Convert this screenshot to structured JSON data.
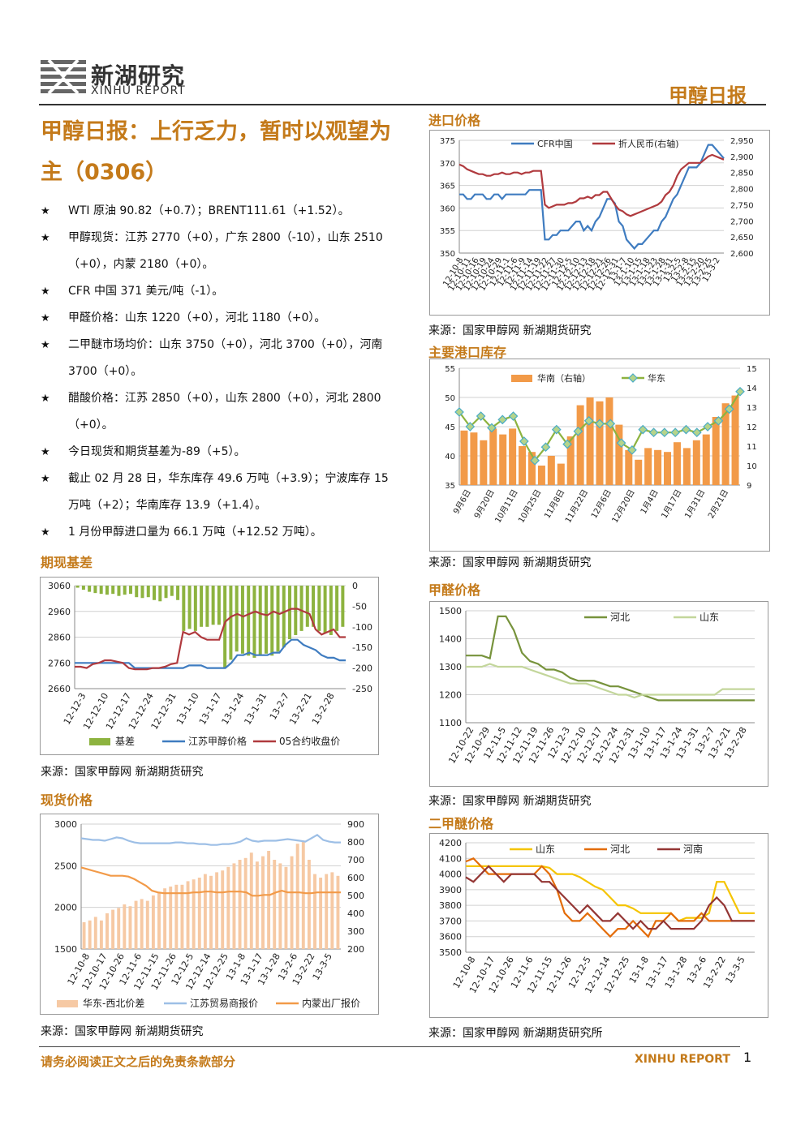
{
  "header": {
    "logo_cn": "新湖研究",
    "logo_en": "XINHU REPORT",
    "report_title": "甲醇日报"
  },
  "main_title": "甲醇日报：上行乏力，暂时以观望为主（0306）",
  "bullets": [
    "WTI 原油 90.82（+0.7）；BRENT111.61（+1.52）。",
    "甲醇现货：江苏 2770（+0），广东 2800（-10），山东 2510（+0），内蒙 2180（+0）。",
    "CFR 中国 371 美元/吨（-1）。",
    "甲醛价格：山东 1220（+0），河北 1180（+0）。",
    "二甲醚市场均价：山东 3750（+0），河北 3700（+0），河南 3700（+0）。",
    "醋酸价格：江苏 2850（+0），山东 2800（+0），河北 2800（+0）。",
    "今日现货和期货基差为-89（+5）。",
    "截止 02 月 28 日，华东库存 49.6 万吨（+3.9）；宁波库存 15 万吨（+2）；华南库存 13.9（+1.4）。",
    "1 月份甲醇进口量为 66.1 万吨（+12.52 万吨）。"
  ],
  "sections": {
    "basis": "期现基差",
    "spot": "现货价格",
    "import": "进口价格",
    "inventory": "主要港口库存",
    "formaldehyde": "甲醛价格",
    "dme": "二甲醚价格"
  },
  "sources": {
    "basis": "来源：国家甲醇网 新湖期货研究",
    "spot": "来源：国家甲醇网 新湖期货研究",
    "import": "来源：国家甲醇网 新湖期货研究",
    "inventory": "来源：国家甲醇网 新湖期货研究",
    "formaldehyde": "来源：国家甲醇网 新湖期货研究",
    "dme": "来源：国家甲醇网 新湖期货研究所"
  },
  "footer": {
    "disclaimer": "请务必阅读正文之后的免责条款部分",
    "brand": "XINHU REPORT",
    "page": "1"
  },
  "colors": {
    "accent": "#c47a1a",
    "green": "#8db33f",
    "blue": "#3f7cc0",
    "red": "#b03a3e",
    "orange": "#f29a48",
    "peach": "#f6c9a4",
    "lightblue": "#9dbfe6",
    "olive": "#77933c",
    "lightolive": "#c3d69b",
    "yellow": "#f5c400",
    "darkred": "#943634"
  },
  "chart_data": [
    {
      "id": "basis",
      "type": "line",
      "x_ticks": [
        "12-12-3",
        "12-12-10",
        "12-12-17",
        "12-12-24",
        "12-12-31",
        "13-1-10",
        "13-1-17",
        "13-1-24",
        "13-1-31",
        "13-2-7",
        "13-2-21",
        "13-2-28"
      ],
      "ylim_left": [
        2660,
        3060
      ],
      "yticks_left": [
        2660,
        2760,
        2860,
        2960,
        3060
      ],
      "ylim_right": [
        -250,
        0
      ],
      "yticks_right": [
        -250,
        -200,
        -150,
        -100,
        -50,
        0
      ],
      "series": [
        {
          "name": "基差",
          "axis": "right",
          "kind": "bar",
          "color": "#8db33f",
          "values": [
            -5,
            -10,
            -15,
            -18,
            -20,
            -22,
            -20,
            -25,
            -22,
            -20,
            -28,
            -30,
            -28,
            -35,
            -38,
            -30,
            -25,
            -35,
            -110,
            -105,
            -110,
            -100,
            -100,
            -95,
            -95,
            -200,
            -180,
            -160,
            -165,
            -170,
            -175,
            -170,
            -165,
            -170,
            -160,
            -150,
            -130,
            -120,
            -110,
            -100,
            -100,
            -110,
            -115,
            -120,
            -110,
            -100
          ]
        },
        {
          "name": "江苏甲醇价格",
          "axis": "left",
          "kind": "line",
          "color": "#3f7cc0",
          "values": [
            2760,
            2760,
            2760,
            2760,
            2760,
            2760,
            2760,
            2760,
            2760,
            2760,
            2740,
            2740,
            2740,
            2740,
            2740,
            2740,
            2740,
            2740,
            2740,
            2750,
            2750,
            2750,
            2740,
            2740,
            2740,
            2740,
            2760,
            2790,
            2790,
            2800,
            2790,
            2790,
            2790,
            2800,
            2800,
            2830,
            2850,
            2850,
            2830,
            2820,
            2810,
            2790,
            2780,
            2780,
            2770,
            2770
          ]
        },
        {
          "name": "05合约收盘价",
          "axis": "left",
          "kind": "line",
          "color": "#b03a3e",
          "values": [
            2745,
            2745,
            2740,
            2755,
            2760,
            2770,
            2770,
            2765,
            2760,
            2740,
            2735,
            2735,
            2735,
            2740,
            2740,
            2745,
            2755,
            2760,
            2880,
            2870,
            2880,
            2860,
            2850,
            2850,
            2850,
            2920,
            2940,
            2950,
            2940,
            2950,
            2960,
            2950,
            2945,
            2960,
            2950,
            2960,
            2970,
            2970,
            2960,
            2950,
            2890,
            2870,
            2880,
            2890,
            2860,
            2860
          ]
        }
      ]
    },
    {
      "id": "spot",
      "type": "line",
      "x_ticks": [
        "12-10-8",
        "12-10-17",
        "12-10-26",
        "12-11-6",
        "12-11-15",
        "12-11-26",
        "12-12-5",
        "12-12-14",
        "12-12-25",
        "13-1-8",
        "13-1-17",
        "13-1-28",
        "13-2-6",
        "13-2-22",
        "13-3-5"
      ],
      "ylim_left": [
        1500,
        3000
      ],
      "yticks_left": [
        1500,
        2000,
        2500,
        3000
      ],
      "ylim_right": [
        200,
        900
      ],
      "yticks_right": [
        200,
        300,
        400,
        500,
        600,
        700,
        800,
        900
      ],
      "series": [
        {
          "name": "华东-西北价差",
          "axis": "right",
          "kind": "bar",
          "color": "#f6c9a4",
          "values": [
            350,
            360,
            380,
            360,
            400,
            420,
            430,
            450,
            440,
            470,
            480,
            470,
            500,
            520,
            540,
            550,
            560,
            560,
            580,
            590,
            600,
            620,
            610,
            630,
            640,
            660,
            680,
            700,
            710,
            740,
            690,
            720,
            750,
            700,
            680,
            660,
            720,
            790,
            800,
            700,
            620,
            600,
            620,
            630,
            610
          ]
        },
        {
          "name": "江苏贸易商报价",
          "axis": "left",
          "kind": "line",
          "color": "#9dbfe6",
          "values": [
            2830,
            2820,
            2810,
            2810,
            2800,
            2820,
            2840,
            2830,
            2800,
            2780,
            2770,
            2770,
            2770,
            2770,
            2770,
            2770,
            2780,
            2780,
            2770,
            2770,
            2760,
            2760,
            2750,
            2750,
            2760,
            2760,
            2770,
            2790,
            2830,
            2800,
            2790,
            2800,
            2800,
            2800,
            2810,
            2820,
            2810,
            2800,
            2790,
            2830,
            2870,
            2810,
            2790,
            2780,
            2780
          ]
        },
        {
          "name": "内蒙出厂报价",
          "axis": "left",
          "kind": "line",
          "color": "#f29a48",
          "values": [
            2480,
            2460,
            2440,
            2420,
            2400,
            2380,
            2380,
            2380,
            2370,
            2340,
            2300,
            2260,
            2200,
            2180,
            2170,
            2170,
            2170,
            2170,
            2170,
            2180,
            2180,
            2190,
            2190,
            2180,
            2180,
            2190,
            2190,
            2190,
            2180,
            2140,
            2140,
            2150,
            2150,
            2180,
            2200,
            2180,
            2180,
            2180,
            2170,
            2170,
            2180,
            2180,
            2180,
            2180,
            2180
          ]
        }
      ]
    },
    {
      "id": "import",
      "type": "line",
      "x_ticks": [
        "12-10-8",
        "12-10-11",
        "12-10-16",
        "12-10-19",
        "12-10-24",
        "12-10-29",
        "12-11-1",
        "12-11-6",
        "12-11-9",
        "12-11-14",
        "12-11-19",
        "12-11-22",
        "12-11-27",
        "12-11-30",
        "12-12-5",
        "12-12-10",
        "12-12-13",
        "12-12-18",
        "12-12-21",
        "12-12-26",
        "12-12-31",
        "13-1-7",
        "13-1-10",
        "13-1-15",
        "13-1-18",
        "13-1-23",
        "13-1-28",
        "13-1-31",
        "13-2-5",
        "13-2-8",
        "13-2-15",
        "13-2-20",
        "13-2-25",
        "13-3-2"
      ],
      "ylim_left": [
        350,
        375
      ],
      "yticks_left": [
        350,
        355,
        360,
        365,
        370,
        375
      ],
      "ylim_right": [
        2600,
        2950
      ],
      "yticks_right": [
        2600,
        2650,
        2700,
        2750,
        2800,
        2850,
        2900,
        2950
      ],
      "series": [
        {
          "name": "CFR中国",
          "axis": "left",
          "kind": "line",
          "color": "#3f7cc0",
          "values": [
            363,
            363,
            362,
            362,
            363,
            363,
            363,
            362,
            362,
            363,
            363,
            362,
            363,
            363,
            363,
            363,
            363,
            363,
            364,
            364,
            364,
            364,
            353,
            353,
            354,
            354,
            355,
            355,
            355,
            356,
            357,
            357,
            355,
            356,
            355,
            357,
            358,
            360,
            362,
            362,
            361,
            357,
            356,
            353,
            352,
            351,
            352,
            352,
            353,
            354,
            355,
            355,
            357,
            358,
            360,
            362,
            363,
            365,
            367,
            369,
            369,
            369,
            370,
            372,
            374,
            374,
            373,
            372,
            371
          ]
        },
        {
          "name": "折人民币(右轴)",
          "axis": "right",
          "kind": "line",
          "color": "#b03a3e",
          "values": [
            2875,
            2870,
            2860,
            2855,
            2850,
            2845,
            2845,
            2840,
            2840,
            2845,
            2845,
            2850,
            2845,
            2845,
            2850,
            2850,
            2845,
            2850,
            2850,
            2855,
            2855,
            2855,
            2750,
            2740,
            2745,
            2750,
            2750,
            2750,
            2755,
            2755,
            2760,
            2770,
            2770,
            2775,
            2770,
            2780,
            2780,
            2790,
            2790,
            2770,
            2750,
            2735,
            2730,
            2720,
            2715,
            2720,
            2725,
            2730,
            2735,
            2740,
            2745,
            2750,
            2760,
            2780,
            2790,
            2810,
            2840,
            2860,
            2870,
            2880,
            2880,
            2880,
            2880,
            2890,
            2900,
            2905,
            2900,
            2895,
            2890
          ]
        }
      ]
    },
    {
      "id": "inventory",
      "type": "line",
      "x_ticks": [
        "9月6日",
        "9月20日",
        "10月11日",
        "10月25日",
        "11月8日",
        "11月22日",
        "12月6日",
        "12月20日",
        "1月4日",
        "1月17日",
        "1月31日",
        "2月21日"
      ],
      "ylim_left": [
        35,
        55
      ],
      "yticks_left": [
        35,
        40,
        45,
        50,
        55
      ],
      "ylim_right": [
        9,
        15
      ],
      "yticks_right": [
        9,
        10,
        11,
        12,
        13,
        14,
        15
      ],
      "series": [
        {
          "name": "华南（右轴）",
          "axis": "right",
          "kind": "bar",
          "color": "#f29a48",
          "values": [
            11.8,
            11.7,
            11.3,
            11.9,
            11.6,
            11.9,
            11.0,
            10.7,
            10.0,
            10.5,
            10.1,
            11.5,
            13.1,
            13.5,
            13.3,
            13.5,
            12.1,
            10.8,
            10.3,
            10.9,
            10.8,
            10.7,
            11.2,
            10.9,
            11.3,
            11.6,
            12.5,
            13.2,
            13.6
          ]
        },
        {
          "name": "华东",
          "axis": "left",
          "kind": "line",
          "color": "#8db33f",
          "marker_color": "#4bacc6",
          "values": [
            47.5,
            45,
            46.8,
            44.8,
            46.2,
            46.8,
            42.5,
            39.2,
            41.5,
            44.5,
            42,
            44.2,
            46,
            45.5,
            45.5,
            42.2,
            41,
            44.5,
            44,
            44,
            44,
            44.5,
            44,
            45,
            46,
            48,
            51
          ]
        }
      ]
    },
    {
      "id": "formaldehyde",
      "type": "line",
      "x_ticks": [
        "12-10-22",
        "12-10-29",
        "12-11-5",
        "12-11-12",
        "12-11-19",
        "12-11-26",
        "12-12-3",
        "12-12-10",
        "12-12-17",
        "12-12-24",
        "12-12-31",
        "13-1-10",
        "13-1-17",
        "13-1-24",
        "13-1-31",
        "13-2-7",
        "13-2-21",
        "13-2-28"
      ],
      "ylim": [
        1100,
        1500
      ],
      "yticks": [
        1100,
        1200,
        1300,
        1400,
        1500
      ],
      "series": [
        {
          "name": "河北",
          "kind": "line",
          "color": "#77933c",
          "values": [
            1340,
            1340,
            1340,
            1330,
            1480,
            1480,
            1430,
            1350,
            1320,
            1310,
            1290,
            1290,
            1280,
            1260,
            1250,
            1250,
            1250,
            1240,
            1230,
            1230,
            1220,
            1210,
            1200,
            1190,
            1180,
            1180,
            1180,
            1180,
            1180,
            1180,
            1180,
            1180,
            1180,
            1180,
            1180,
            1180,
            1180
          ]
        },
        {
          "name": "山东",
          "kind": "line",
          "color": "#c3d69b",
          "values": [
            1300,
            1300,
            1300,
            1310,
            1300,
            1300,
            1300,
            1300,
            1290,
            1280,
            1270,
            1260,
            1250,
            1240,
            1240,
            1240,
            1230,
            1220,
            1210,
            1200,
            1200,
            1190,
            1200,
            1200,
            1200,
            1200,
            1200,
            1200,
            1200,
            1200,
            1200,
            1200,
            1220,
            1220,
            1220,
            1220,
            1220
          ]
        }
      ]
    },
    {
      "id": "dme",
      "type": "line",
      "x_ticks": [
        "12-10-8",
        "12-10-17",
        "12-10-26",
        "12-11-6",
        "12-11-15",
        "12-11-26",
        "12-12-5",
        "12-12-14",
        "12-12-25",
        "13-1-8",
        "13-1-17",
        "13-1-28",
        "13-2-6",
        "13-2-22",
        "13-3-5"
      ],
      "ylim": [
        3500,
        4200
      ],
      "yticks": [
        3500,
        3600,
        3700,
        3800,
        3900,
        4000,
        4100,
        4200
      ],
      "series": [
        {
          "name": "山东",
          "kind": "line",
          "color": "#f5c400",
          "values": [
            4050,
            4050,
            4050,
            4050,
            4050,
            4050,
            4050,
            4050,
            4050,
            4050,
            4050,
            4040,
            4000,
            4000,
            4000,
            3980,
            3950,
            3920,
            3900,
            3850,
            3800,
            3800,
            3780,
            3750,
            3750,
            3750,
            3750,
            3750,
            3700,
            3720,
            3720,
            3720,
            3750,
            3950,
            3950,
            3850,
            3750,
            3750,
            3750
          ]
        },
        {
          "name": "河北",
          "kind": "line",
          "color": "#e36c09",
          "values": [
            4080,
            4100,
            4050,
            4000,
            4000,
            4000,
            4000,
            4000,
            4000,
            4000,
            4050,
            4000,
            3900,
            3750,
            3700,
            3700,
            3750,
            3700,
            3650,
            3600,
            3650,
            3650,
            3700,
            3650,
            3600,
            3700,
            3700,
            3750,
            3700,
            3700,
            3700,
            3750,
            3700,
            3700,
            3700,
            3700,
            3700,
            3700,
            3700
          ]
        },
        {
          "name": "河南",
          "kind": "line",
          "color": "#943634",
          "values": [
            3980,
            3950,
            4000,
            4050,
            4000,
            3950,
            4000,
            4000,
            4000,
            4000,
            3950,
            3950,
            3900,
            3850,
            3800,
            3750,
            3800,
            3750,
            3700,
            3700,
            3750,
            3700,
            3650,
            3700,
            3650,
            3650,
            3700,
            3650,
            3650,
            3650,
            3650,
            3700,
            3800,
            3850,
            3800,
            3700,
            3700,
            3700,
            3700
          ]
        }
      ]
    }
  ]
}
